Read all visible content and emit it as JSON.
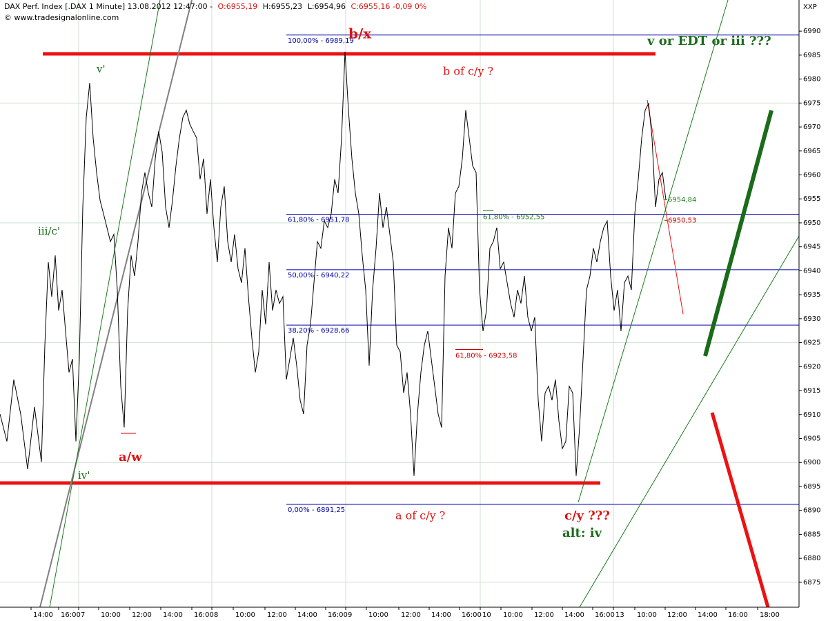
{
  "chart_data": {
    "type": "line",
    "title": "DAX Perf. Index [.DAX 1 Minute] 13.08.2012 12:47:00 -",
    "ohlc": [
      "O:6955,19",
      "H:6955,23",
      "L:6954,96",
      "C:6955,16 -0,09 0%"
    ],
    "subtitle": "© www.tradesignalonline.com",
    "corner_label": "XXP",
    "xlim": [
      0,
      231.6
    ],
    "ylim": [
      6869.8,
      6996.5
    ],
    "yticks": [
      6875,
      6880,
      6885,
      6890,
      6895,
      6900,
      6905,
      6910,
      6915,
      6920,
      6925,
      6930,
      6935,
      6940,
      6945,
      6950,
      6955,
      6960,
      6965,
      6970,
      6975,
      6980,
      6985,
      6990
    ],
    "xticks": [
      {
        "value": 9,
        "label": "14:00"
      },
      {
        "value": 17,
        "label": "16:00"
      },
      {
        "value": 22.8,
        "label": "7"
      },
      {
        "value": 28.6,
        "label": "10:00"
      },
      {
        "value": 37.6,
        "label": "12:00"
      },
      {
        "value": 46.6,
        "label": "14:00"
      },
      {
        "value": 55.6,
        "label": "16:00"
      },
      {
        "value": 61.4,
        "label": "8"
      },
      {
        "value": 67.6,
        "label": "10:00"
      },
      {
        "value": 76.8,
        "label": "12:00"
      },
      {
        "value": 85.6,
        "label": "14:00"
      },
      {
        "value": 94.4,
        "label": "16:00"
      },
      {
        "value": 100.2,
        "label": "9"
      },
      {
        "value": 106.2,
        "label": "10:00"
      },
      {
        "value": 115.6,
        "label": "12:00"
      },
      {
        "value": 124.4,
        "label": "14:00"
      },
      {
        "value": 133.2,
        "label": "16:00"
      },
      {
        "value": 139.2,
        "label": "10"
      },
      {
        "value": 145.2,
        "label": "10:00"
      },
      {
        "value": 154.2,
        "label": "12:00"
      },
      {
        "value": 163,
        "label": "14:00"
      },
      {
        "value": 171.8,
        "label": "16:00"
      },
      {
        "value": 177.8,
        "label": "13"
      },
      {
        "value": 184,
        "label": "10:00"
      },
      {
        "value": 192.8,
        "label": "12:00"
      },
      {
        "value": 201.6,
        "label": "14:00"
      },
      {
        "value": 210.4,
        "label": "16:00"
      },
      {
        "value": 219.6,
        "label": "18:00"
      }
    ],
    "grid": true,
    "series": [
      {
        "color": "#000000",
        "x": [
          0,
          2,
          4,
          6,
          8,
          10,
          12,
          13,
          14,
          15,
          16,
          17,
          18,
          19,
          20,
          21,
          22,
          23,
          24,
          25,
          26,
          27,
          28,
          29,
          30,
          31,
          32,
          33,
          34,
          35,
          36,
          37,
          38,
          39,
          40,
          41,
          42,
          43,
          44,
          45,
          46,
          47,
          48,
          49,
          50,
          51,
          52,
          53,
          54,
          55,
          56,
          57,
          58,
          59,
          60,
          61,
          62,
          63,
          64,
          65,
          66,
          67,
          68,
          69,
          70,
          71,
          72,
          73,
          74,
          75,
          76,
          77,
          78,
          79,
          80,
          81,
          82,
          83,
          84,
          85,
          86,
          87,
          88,
          89,
          90,
          91,
          92,
          93,
          94,
          95,
          96,
          97,
          98,
          99,
          100,
          101,
          102,
          103,
          104,
          105,
          106,
          107,
          108,
          109,
          110,
          111,
          112,
          113,
          114,
          115,
          116,
          117,
          118,
          119,
          120,
          121,
          122,
          123,
          124,
          125,
          126,
          127,
          128,
          129,
          130,
          131,
          132,
          133,
          134,
          135,
          136,
          137,
          138,
          139,
          140,
          141,
          142,
          143,
          144,
          145,
          146,
          147,
          148,
          149,
          150,
          151,
          152,
          153,
          154,
          155,
          156,
          157,
          158,
          159,
          160,
          161,
          162,
          163,
          164,
          165,
          166,
          167,
          168,
          169,
          170,
          171,
          172,
          173,
          174,
          175,
          176,
          177,
          178,
          179,
          180,
          181,
          182,
          183,
          184,
          185,
          186,
          187,
          188,
          189,
          190,
          191,
          192,
          193
        ],
        "values": [
          6910.1,
          6904.4,
          6917.3,
          6910.1,
          6898.6,
          6911.6,
          6900.1,
          6924.5,
          6941.8,
          6934.6,
          6943.2,
          6931.7,
          6936.0,
          6927.4,
          6918.8,
          6921.6,
          6904.4,
          6921.6,
          6953.3,
          6972.0,
          6979.2,
          6967.7,
          6960.5,
          6954.7,
          6951.9,
          6949.0,
          6946.1,
          6947.6,
          6936.0,
          6915.9,
          6907.3,
          6931.7,
          6943.2,
          6938.9,
          6946.1,
          6956.2,
          6960.5,
          6956.2,
          6953.3,
          6963.4,
          6969.1,
          6964.8,
          6953.3,
          6949.0,
          6954.7,
          6961.9,
          6967.7,
          6972.0,
          6973.5,
          6970.6,
          6969.1,
          6967.7,
          6959.1,
          6963.4,
          6951.9,
          6959.1,
          6949.0,
          6941.8,
          6953.3,
          6957.6,
          6946.1,
          6941.8,
          6947.6,
          6940.4,
          6937.5,
          6944.7,
          6934.6,
          6926.0,
          6918.8,
          6923.1,
          6936.0,
          6928.8,
          6941.8,
          6931.7,
          6936.0,
          6933.2,
          6934.6,
          6917.3,
          6921.6,
          6926.0,
          6920.2,
          6913.0,
          6910.1,
          6924.5,
          6928.8,
          6937.5,
          6946.1,
          6944.7,
          6950.4,
          6949.0,
          6951.9,
          6959.1,
          6956.2,
          6967.7,
          6985.7,
          6973.5,
          6963.4,
          6956.2,
          6951.9,
          6943.2,
          6936.0,
          6920.2,
          6936.0,
          6944.7,
          6956.2,
          6949.0,
          6953.3,
          6947.6,
          6941.8,
          6924.5,
          6923.1,
          6914.5,
          6918.8,
          6910.1,
          6897.2,
          6910.1,
          6918.8,
          6924.5,
          6927.4,
          6921.6,
          6915.9,
          6910.1,
          6907.3,
          6938.9,
          6949.0,
          6944.7,
          6956.2,
          6957.6,
          6963.4,
          6973.5,
          6967.7,
          6961.9,
          6960.5,
          6936.0,
          6927.4,
          6931.7,
          6944.7,
          6946.1,
          6949.0,
          6940.4,
          6941.8,
          6937.5,
          6933.2,
          6930.3,
          6936.0,
          6933.2,
          6938.9,
          6930.3,
          6927.4,
          6930.3,
          6913.0,
          6904.4,
          6914.5,
          6915.9,
          6913.0,
          6917.3,
          6908.7,
          6902.9,
          6904.4,
          6915.9,
          6914.5,
          6897.2,
          6907.3,
          6921.6,
          6936.0,
          6938.9,
          6944.7,
          6941.8,
          6946.1,
          6949.0,
          6950.4,
          6938.9,
          6931.7,
          6936.0,
          6927.4,
          6937.5,
          6938.9,
          6936.0,
          6951.9,
          6959.1,
          6967.7,
          6973.5,
          6974.9,
          6967.7,
          6953.3,
          6959.1,
          6960.5,
          6954.84
        ]
      }
    ],
    "fib_start": 83,
    "fib_color": "#0000aa",
    "fib_levels": [
      {
        "value": 6989.19,
        "label": "100,00% - 6989,19"
      },
      {
        "value": 6951.78,
        "label": "61,80% - 6951,78"
      },
      {
        "value": 6940.22,
        "label": "50,00% - 6940,22"
      },
      {
        "value": 6928.66,
        "label": "38,20% - 6928,66"
      },
      {
        "value": 6891.25,
        "label": "0,00% - 6891,25"
      }
    ],
    "retracements": [
      {
        "value": 6952.55,
        "label": "61,80% - 6952,55",
        "color": "#1a7a1a",
        "from": 140,
        "to": 143
      },
      {
        "value": 6923.58,
        "label": "61,80% - 6923,58",
        "color": "#cc0000",
        "from": 132,
        "to": 140
      }
    ],
    "price_tags": [
      {
        "value": 6954.84,
        "label": "6954,84",
        "color": "#1a7a1a"
      },
      {
        "value": 6950.53,
        "label": "6950,53",
        "color": "#cc0000"
      }
    ],
    "annotations": [
      "b/x",
      "v or EDT or iii ???",
      "b of c/y ?",
      "v'",
      "iii/c'",
      "a/w",
      "iv'",
      "a of c/y ?",
      "c/y ???",
      "alt: iv"
    ]
  }
}
